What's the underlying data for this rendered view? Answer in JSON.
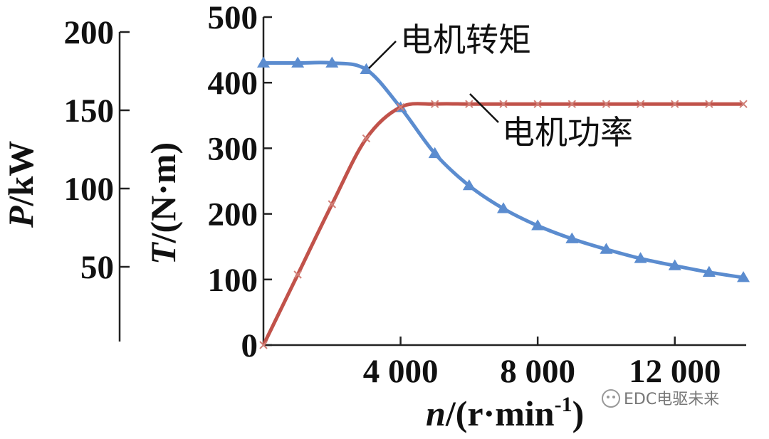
{
  "chart_data": {
    "type": "line",
    "x_axis": {
      "label_var": "n",
      "label_unit": "/(r·min",
      "label_exp": "-1",
      "label_close": ")",
      "ticks": [
        4000,
        8000,
        12000
      ],
      "tick_labels": [
        "4 000",
        "8 000",
        "12 000"
      ],
      "range": [
        0,
        14000
      ]
    },
    "y_axis_torque": {
      "label_var": "T",
      "label_unit": "/(N·m)",
      "ticks": [
        0,
        100,
        200,
        300,
        400,
        500
      ],
      "tick_labels": [
        "0",
        "100",
        "200",
        "300",
        "400",
        "500"
      ],
      "range": [
        0,
        500
      ]
    },
    "y_axis_power": {
      "label_var": "P",
      "label_unit": "/kW",
      "ticks": [
        50,
        100,
        150,
        200
      ],
      "tick_labels": [
        "50",
        "100",
        "150",
        "200"
      ],
      "range": [
        0,
        200
      ]
    },
    "series": [
      {
        "name": "电机转矩",
        "axis": "torque",
        "marker": "triangle",
        "color": "#5b8ccf",
        "x": [
          0,
          1000,
          2000,
          3000,
          4000,
          5000,
          6000,
          7000,
          8000,
          9000,
          10000,
          11000,
          12000,
          13000,
          14000
        ],
        "y": [
          430,
          430,
          430,
          420,
          362,
          292,
          243,
          208,
          182,
          162,
          146,
          132,
          121,
          111,
          103
        ]
      },
      {
        "name": "电机功率",
        "axis": "power",
        "marker": "x",
        "color": "#c1524a",
        "x": [
          0,
          1000,
          2000,
          3000,
          4000,
          5000,
          6000,
          7000,
          8000,
          9000,
          10000,
          11000,
          12000,
          13000,
          14000
        ],
        "y": [
          0,
          45,
          90,
          132,
          152,
          154,
          154,
          154,
          154,
          154,
          154,
          154,
          154,
          154,
          154
        ]
      }
    ],
    "annotations": [
      "电机转矩",
      "电机功率"
    ],
    "grid": false,
    "legend": "none"
  },
  "watermark": "EDC电驱未来"
}
